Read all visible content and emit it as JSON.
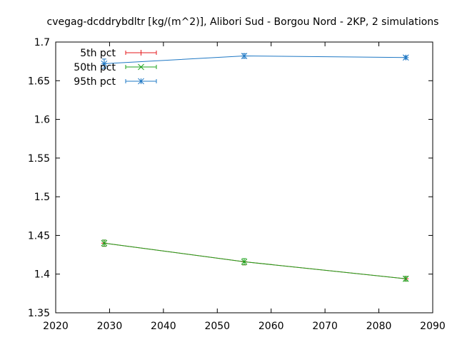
{
  "chart_data": {
    "type": "line",
    "title": "cvegag-dcddrybdltr [kg/(m^2)], Alibori Sud - Borgou Nord - 2KP, 2 simulations",
    "xlabel": "",
    "ylabel": "",
    "xlim": [
      2020,
      2090
    ],
    "ylim": [
      1.35,
      1.7
    ],
    "x_ticks": [
      "2020",
      "2030",
      "2040",
      "2050",
      "2060",
      "2070",
      "2080",
      "2090"
    ],
    "y_ticks": [
      "1.35",
      "1.4",
      "1.45",
      "1.5",
      "1.55",
      "1.6",
      "1.65",
      "1.7"
    ],
    "grid": false,
    "legend_position": "top-left",
    "series": [
      {
        "name": "5th pct",
        "color": "#e41a1c",
        "marker": "plus",
        "x": [
          2029,
          2055,
          2085
        ],
        "values": [
          1.44,
          1.416,
          1.394
        ],
        "err": [
          0.004,
          0.004,
          0.003
        ]
      },
      {
        "name": "50th pct",
        "color": "#1ca31c",
        "marker": "cross",
        "x": [
          2029,
          2055,
          2085
        ],
        "values": [
          1.44,
          1.416,
          1.394
        ],
        "err": [
          0.004,
          0.004,
          0.003
        ]
      },
      {
        "name": "95th pct",
        "color": "#1f78c4",
        "marker": "star",
        "x": [
          2029,
          2055,
          2085
        ],
        "values": [
          1.672,
          1.682,
          1.68
        ],
        "err": [
          0.006,
          0.003,
          0.002
        ]
      }
    ]
  }
}
